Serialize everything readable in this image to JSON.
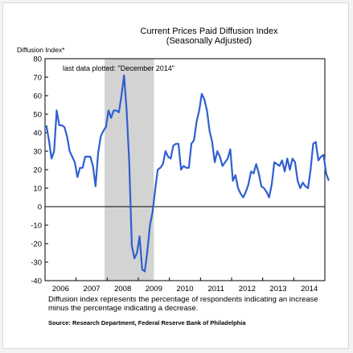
{
  "chart_data": {
    "type": "line",
    "title": "Current Prices Paid Diffusion Index",
    "subtitle": "(Seasonally Adjusted)",
    "ylabel": "Diffusion Index*",
    "xlabel": "",
    "ylim": [
      -40,
      80
    ],
    "yticks": [
      80,
      70,
      60,
      50,
      40,
      30,
      20,
      10,
      0,
      -10,
      -20,
      -30,
      -40
    ],
    "xticks": [
      "2006",
      "2007",
      "2008",
      "2009",
      "2010",
      "2011",
      "2012",
      "2013",
      "2014"
    ],
    "xlim": [
      "Jan 2006",
      "Dec 2014"
    ],
    "annotation": "last data plotted: \"December 2014\"",
    "recession_shading": {
      "start": "Dec 2007",
      "end": "Jun 2009",
      "color": "#d3d3d3"
    },
    "grid": false,
    "line_color": "#2f5fd0",
    "series": [
      {
        "x_start": "Jan 2006",
        "frequency": "monthly",
        "values": [
          44,
          36,
          26,
          30,
          52,
          44,
          44,
          43,
          38,
          30,
          27,
          24,
          16,
          21,
          21,
          27,
          27,
          27,
          22,
          11,
          29,
          38,
          41,
          43,
          52,
          48,
          52,
          52,
          51,
          60,
          71,
          52,
          24,
          -21,
          -28,
          -25,
          -16,
          -34,
          -35,
          -24,
          -10,
          -3,
          9,
          20,
          21,
          23,
          30,
          27,
          26,
          33,
          34,
          34,
          20,
          22,
          21,
          21,
          34,
          36,
          46,
          52,
          61,
          58,
          52,
          41,
          35,
          24,
          30,
          27,
          22,
          24,
          26,
          31,
          14,
          17,
          10,
          7,
          5,
          8,
          12,
          19,
          18,
          23,
          18,
          11,
          10,
          8,
          5,
          12,
          24,
          23,
          22,
          25,
          19,
          26,
          20,
          26,
          24,
          14,
          10,
          13,
          11,
          10,
          20,
          34,
          35,
          25,
          27,
          28,
          18,
          14
        ]
      }
    ]
  },
  "footer": {
    "note": "Diffusion index represents the percentage of respondents indicating an increase minus the percentage indicating a decrease.",
    "source": "Source: Research Department, Federal Reserve Bank of Philadelphia"
  }
}
